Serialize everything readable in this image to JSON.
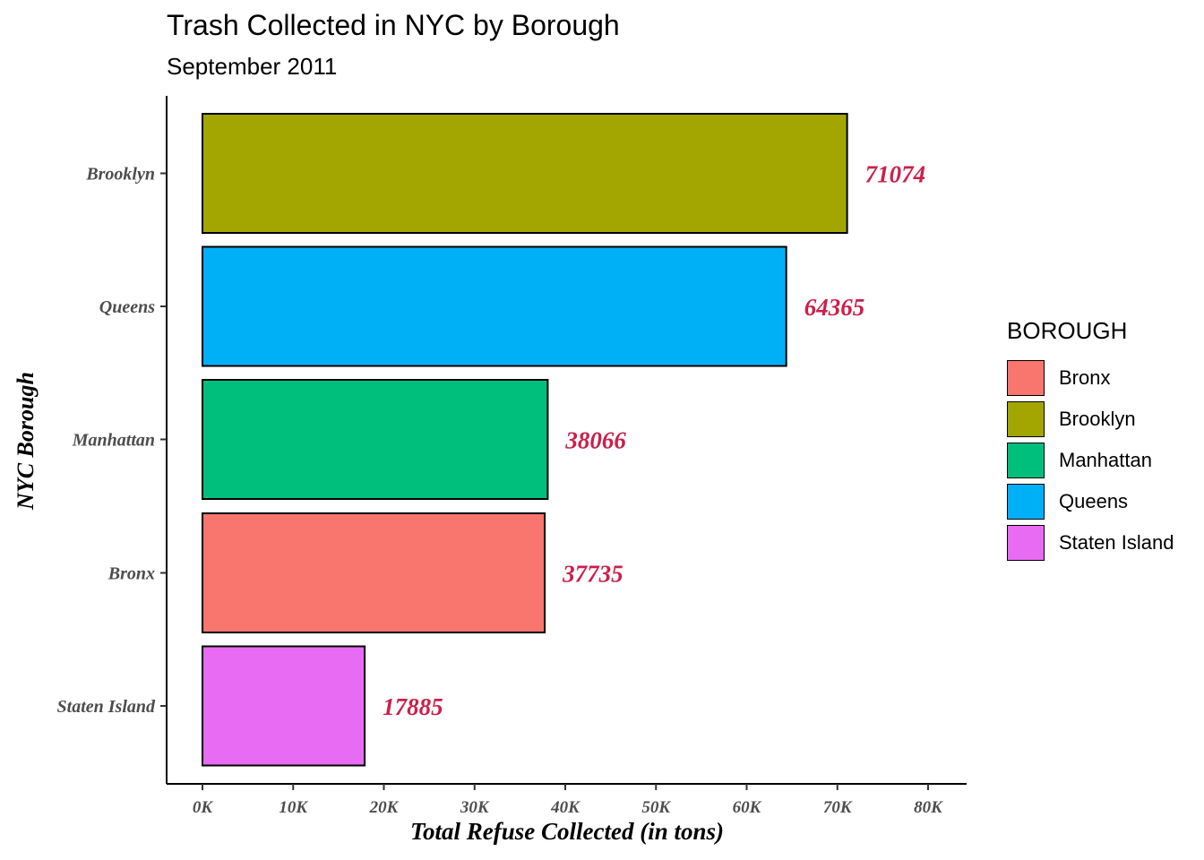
{
  "chart_data": {
    "type": "bar",
    "orientation": "horizontal",
    "title": "Trash Collected in NYC by Borough",
    "subtitle": "September 2011",
    "xlabel": "Total Refuse Collected (in tons)",
    "ylabel": "NYC Borough",
    "xlim": [
      0,
      80000
    ],
    "x_ticks": [
      0,
      10000,
      20000,
      30000,
      40000,
      50000,
      60000,
      70000,
      80000
    ],
    "x_tick_labels": [
      "0K",
      "10K",
      "20K",
      "30K",
      "40K",
      "50K",
      "60K",
      "70K",
      "80K"
    ],
    "categories": [
      "Brooklyn",
      "Queens",
      "Manhattan",
      "Bronx",
      "Staten Island"
    ],
    "values": [
      71074,
      64365,
      38066,
      37735,
      17885
    ],
    "data_labels": [
      "71074",
      "64365",
      "38066",
      "37735",
      "17885"
    ],
    "colors": [
      "#a3a500",
      "#00b0f6",
      "#00bf7d",
      "#f8766d",
      "#e76bf3"
    ],
    "data_label_color": "#cc1f4a",
    "grid": false,
    "legend": {
      "title": "BOROUGH",
      "placement": "right",
      "items": [
        {
          "label": "Bronx",
          "color": "#f8766d"
        },
        {
          "label": "Brooklyn",
          "color": "#a3a500"
        },
        {
          "label": "Manhattan",
          "color": "#00bf7d"
        },
        {
          "label": "Queens",
          "color": "#00b0f6"
        },
        {
          "label": "Staten Island",
          "color": "#e76bf3"
        }
      ]
    }
  }
}
